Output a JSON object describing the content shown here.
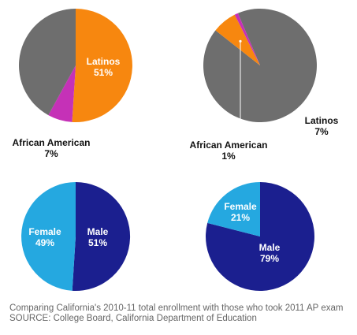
{
  "chart_data": [
    {
      "type": "pie",
      "title": "",
      "slices": [
        {
          "name": "Latinos",
          "value": 51,
          "label": "Latinos",
          "pct_label": "51%",
          "color": "#f7870f",
          "label_color": "#ffffff"
        },
        {
          "name": "African American",
          "value": 7,
          "label": "African American",
          "pct_label": "7%",
          "color": "#c531b7",
          "label_color": "#111111"
        },
        {
          "name": "Other",
          "value": 42,
          "label": "",
          "pct_label": "",
          "color": "#6e6e6e"
        }
      ]
    },
    {
      "type": "pie",
      "title": "",
      "slices": [
        {
          "name": "Other",
          "value": 92,
          "label": "",
          "pct_label": "",
          "color": "#6e6e6e"
        },
        {
          "name": "Latinos",
          "value": 7,
          "label": "Latinos",
          "pct_label": "7%",
          "color": "#f7870f",
          "label_color": "#111111"
        },
        {
          "name": "African American",
          "value": 1,
          "label": "African American",
          "pct_label": "1%",
          "color": "#c531b7",
          "label_color": "#111111"
        }
      ]
    },
    {
      "type": "pie",
      "title": "",
      "slices": [
        {
          "name": "Male",
          "value": 51,
          "label": "Male",
          "pct_label": "51%",
          "color": "#1b1f8f",
          "label_color": "#ffffff"
        },
        {
          "name": "Female",
          "value": 49,
          "label": "Female",
          "pct_label": "49%",
          "color": "#25a8e0",
          "label_color": "#ffffff"
        }
      ]
    },
    {
      "type": "pie",
      "title": "",
      "slices": [
        {
          "name": "Male",
          "value": 79,
          "label": "Male",
          "pct_label": "79%",
          "color": "#1b1f8f",
          "label_color": "#ffffff"
        },
        {
          "name": "Female",
          "value": 21,
          "label": "Female",
          "pct_label": "21%",
          "color": "#25a8e0",
          "label_color": "#ffffff"
        }
      ]
    }
  ],
  "caption": {
    "line1": "Comparing California's 2010-11 total enrollment with those who took 2011 AP exam",
    "line2": "SOURCE: College Board, California Department of Education"
  }
}
